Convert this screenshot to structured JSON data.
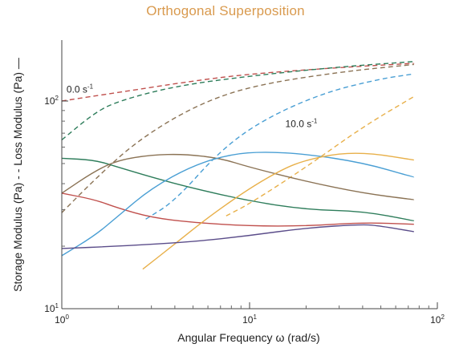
{
  "chart_data": {
    "type": "line",
    "title": "Orthogonal Superposition",
    "xlabel": "Angular Frequency ω (rad/s)",
    "ylabel": "Storage Modulus (Pa) -  -  Loss Modulus (Pa) —",
    "x_scale": "log",
    "y_scale": "log",
    "xlim": [
      1,
      100
    ],
    "ylim": [
      10,
      200
    ],
    "x_ticks": [
      {
        "value": 1,
        "base": "10",
        "exp": "0"
      },
      {
        "value": 10,
        "base": "10",
        "exp": "1"
      },
      {
        "value": 100,
        "base": "10",
        "exp": "2"
      }
    ],
    "y_ticks": [
      {
        "value": 10,
        "base": "10",
        "exp": "1"
      },
      {
        "value": 100,
        "base": "10",
        "exp": "2"
      }
    ],
    "annotations": [
      {
        "text": "0.0 s",
        "sup": "-1",
        "x": 1.06,
        "y": 110
      },
      {
        "text": "10.0 s",
        "sup": "-1",
        "x": 15.5,
        "y": 75
      }
    ],
    "series": [
      {
        "color": "#c0504d",
        "dash": true,
        "x": [
          1,
          2,
          5,
          10,
          30,
          75
        ],
        "y": [
          100,
          110,
          125,
          135,
          145,
          152
        ]
      },
      {
        "color": "#2e7d5b",
        "dash": true,
        "x": [
          1,
          1.5,
          2,
          4,
          10,
          30,
          75
        ],
        "y": [
          65,
          88,
          100,
          118,
          132,
          146,
          155
        ]
      },
      {
        "color": "#8b7355",
        "dash": true,
        "x": [
          1,
          1.5,
          2.5,
          5,
          10,
          30,
          75
        ],
        "y": [
          29,
          42,
          64,
          94,
          118,
          138,
          150
        ]
      },
      {
        "color": "#4a9fd4",
        "dash": true,
        "x": [
          2.8,
          4,
          7,
          12,
          25,
          50,
          75
        ],
        "y": [
          27,
          33,
          58,
          82,
          110,
          128,
          135
        ]
      },
      {
        "color": "#e8b04a",
        "dash": true,
        "x": [
          7.5,
          10,
          20,
          40,
          75
        ],
        "y": [
          28,
          32,
          48,
          75,
          105
        ]
      },
      {
        "color": "#2e7d5b",
        "dash": false,
        "x": [
          1,
          1.5,
          2,
          3,
          5,
          10,
          20,
          40,
          75
        ],
        "y": [
          53,
          52,
          48,
          43,
          38,
          33,
          30,
          29.5,
          26.5
        ]
      },
      {
        "color": "#8b7355",
        "dash": false,
        "x": [
          1,
          1.5,
          2,
          3,
          4.5,
          7,
          10,
          20,
          40,
          75
        ],
        "y": [
          36,
          46,
          52,
          55,
          55.5,
          53,
          48,
          41,
          36,
          33.5
        ]
      },
      {
        "color": "#c0504d",
        "dash": false,
        "x": [
          1,
          1.5,
          2,
          3,
          5,
          10,
          20,
          40,
          75
        ],
        "y": [
          36,
          33.5,
          30.5,
          27.5,
          26,
          25,
          25,
          26,
          25.5
        ]
      },
      {
        "color": "#4a9fd4",
        "dash": false,
        "x": [
          1,
          1.5,
          2,
          3,
          5,
          8,
          12,
          20,
          40,
          75
        ],
        "y": [
          18,
          22.5,
          28,
          38,
          49,
          55.5,
          57,
          55.5,
          50.5,
          43
        ]
      },
      {
        "color": "#e8b04a",
        "dash": false,
        "x": [
          2.7,
          4,
          6,
          10,
          15,
          20,
          30,
          45,
          75
        ],
        "y": [
          15.5,
          20.5,
          27.5,
          38,
          47,
          52,
          56,
          56,
          52
        ]
      },
      {
        "color": "#5b4d8a",
        "dash": false,
        "x": [
          1,
          2,
          5,
          10,
          20,
          40,
          50,
          75
        ],
        "y": [
          19.5,
          20,
          21,
          22.5,
          24.5,
          25.5,
          25,
          23.5
        ]
      }
    ]
  }
}
